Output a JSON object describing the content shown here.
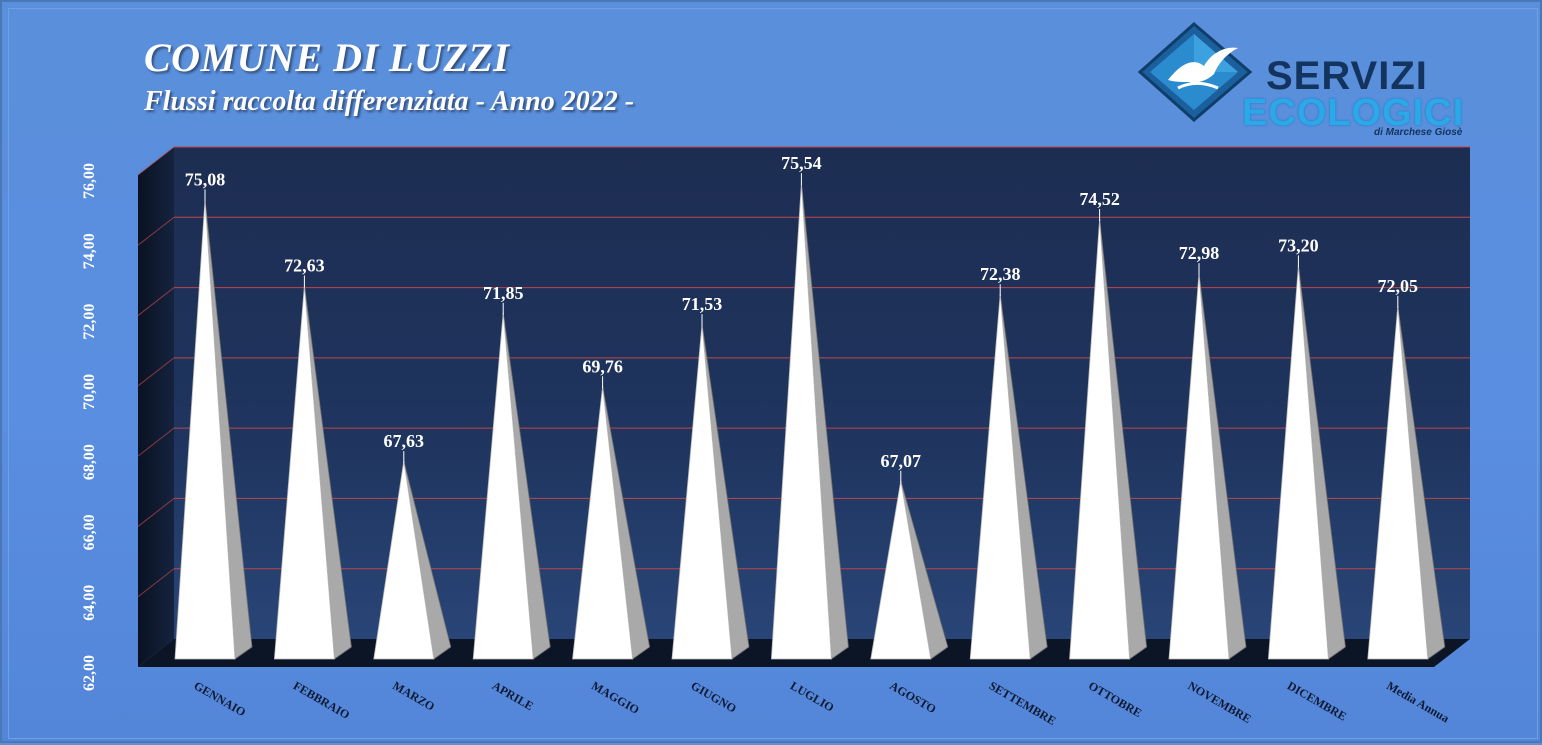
{
  "header": {
    "title": "COMUNE DI LUZZI",
    "subtitle": "Flussi raccolta differenziata - Anno 2022 -"
  },
  "logo": {
    "line1": "SERVIZI",
    "line2": "ECOLOGICI",
    "line3": "di Marchese Giosè",
    "icon": "seagull-diamond-icon"
  },
  "colors": {
    "background": "#5a8fdb",
    "plot_back": "#1c2f56",
    "grid": "#c0464a",
    "spike_face": "#ffffff",
    "spike_side": "#a9a9a9",
    "floor": "#0c1526",
    "title_text": "#ffffff",
    "logo_dark": "#13345f",
    "logo_light": "#2aa8e8"
  },
  "chart_data": {
    "type": "bar",
    "bar_shape": "3d-cone",
    "title": "COMUNE DI LUZZI",
    "subtitle": "Flussi raccolta differenziata - Anno 2022 -",
    "categories": [
      "GENNAIO",
      "FEBBRAIO",
      "MARZO",
      "APRILE",
      "MAGGIO",
      "GIUGNO",
      "LUGLIO",
      "AGOSTO",
      "SETTEMBRE",
      "OTTOBRE",
      "NOVEMBRE",
      "DICEMBRE",
      "Media Annua"
    ],
    "values": [
      75.08,
      72.63,
      67.63,
      71.85,
      69.76,
      71.53,
      75.54,
      67.07,
      72.38,
      74.52,
      72.98,
      73.2,
      72.05
    ],
    "data_labels": [
      "75,08",
      "72,63",
      "67,63",
      "71,85",
      "69,76",
      "71,53",
      "75,54",
      "67,07",
      "72,38",
      "74,52",
      "72,98",
      "73,20",
      "72,05"
    ],
    "ylim": [
      62,
      76
    ],
    "yticks": [
      62,
      64,
      66,
      68,
      70,
      72,
      74,
      76
    ],
    "ytick_labels": [
      "62,00",
      "64,00",
      "66,00",
      "68,00",
      "70,00",
      "72,00",
      "74,00",
      "76,00"
    ],
    "xlabel": "",
    "ylabel": "",
    "grid": true,
    "legend": "none"
  }
}
